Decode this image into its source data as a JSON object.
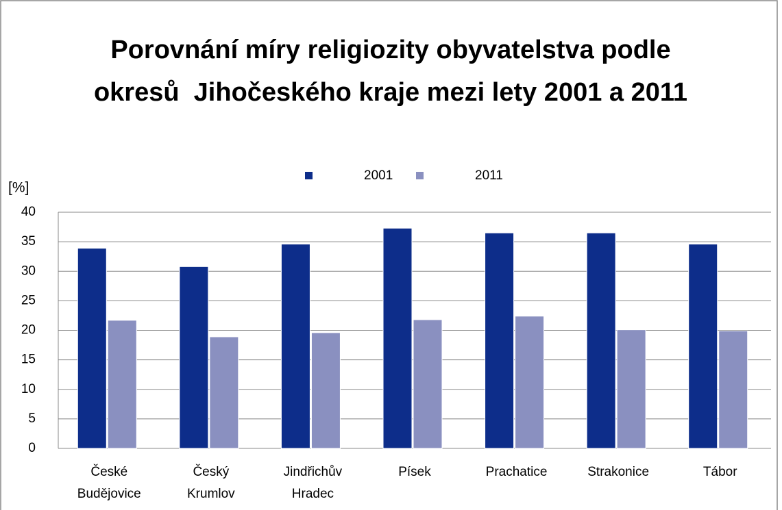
{
  "chart_data": {
    "type": "bar",
    "title": "Porovnání míry religiozity obyvatelstva podle okresů  Jihočeského kraje mezi lety 2001 a 2011",
    "y_label": "[%]",
    "categories": [
      "České Budějovice",
      "Český Krumlov",
      "Jindřichův Hradec",
      "Písek",
      "Prachatice",
      "Strakonice",
      "Tábor"
    ],
    "series": [
      {
        "name": "2001",
        "color": "#0d2d8a",
        "values": [
          33.9,
          30.8,
          34.6,
          37.3,
          36.5,
          36.5,
          34.6
        ]
      },
      {
        "name": "2011",
        "color": "#8a90c0",
        "values": [
          21.7,
          18.9,
          19.6,
          21.8,
          22.4,
          20.1,
          19.9
        ]
      }
    ],
    "ylim": [
      0,
      40
    ],
    "yticks": [
      0,
      5,
      10,
      15,
      20,
      25,
      30,
      35,
      40
    ],
    "grid": true,
    "legend": "top"
  }
}
